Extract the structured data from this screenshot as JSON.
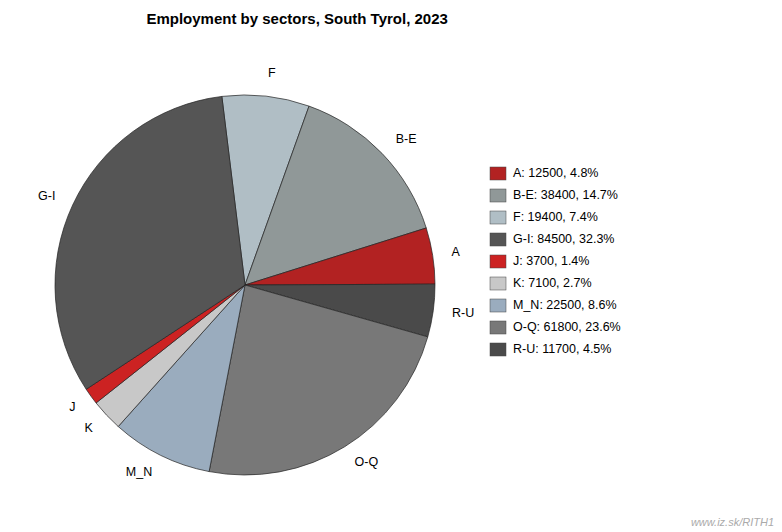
{
  "chart_data": {
    "type": "pie",
    "title": "Employment by sectors, South Tyrol, 2023",
    "categories": [
      "F",
      "B-E",
      "A",
      "R-U",
      "O-Q",
      "M_N",
      "K",
      "J",
      "G-I"
    ],
    "values": [
      19400,
      38400,
      12500,
      11700,
      61800,
      22500,
      7100,
      3700,
      84500
    ],
    "colors": [
      "#b0bec5",
      "#909898",
      "#b22222",
      "#4a4a4a",
      "#787878",
      "#9aacbe",
      "#c8c8c8",
      "#cc2222",
      "#555555"
    ],
    "legend": "right",
    "legend_labels": [
      "A: 12500, 4.8%",
      "B-E: 38400, 14.7%",
      "F: 19400, 7.4%",
      "G-I: 84500, 32.3%",
      "J: 3700, 1.4%",
      "K: 7100, 2.7%",
      "M_N: 22500, 8.6%",
      "O-Q: 61800, 23.6%",
      "R-U: 11700, 4.5%"
    ],
    "legend_colors": [
      "#b22222",
      "#909898",
      "#b0bec5",
      "#555555",
      "#cc2222",
      "#c8c8c8",
      "#9aacbe",
      "#787878",
      "#4a4a4a"
    ],
    "annotations": [
      "www.iz.sk/RITH1"
    ]
  }
}
